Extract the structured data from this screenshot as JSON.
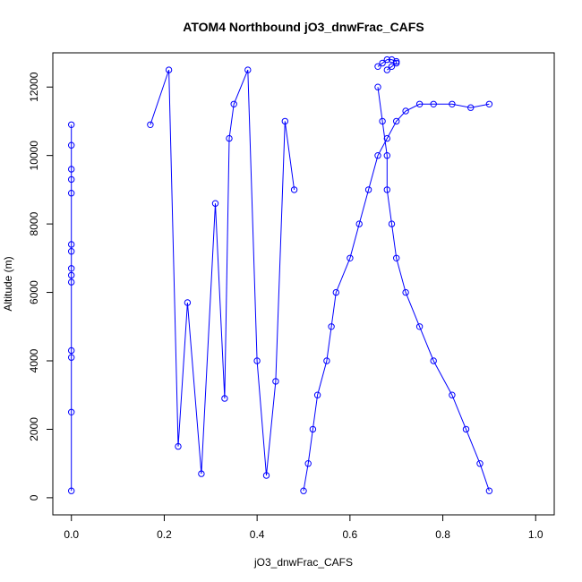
{
  "chart_data": {
    "type": "scatter",
    "title": "ATOM4 Northbound jO3_dnwFrac_CAFS",
    "xlabel": "jO3_dnwFrac_CAFS",
    "ylabel": "Altitude (m)",
    "xlim": [
      -0.04,
      1.04
    ],
    "ylim": [
      -500,
      13000
    ],
    "xticks": [
      0.0,
      0.2,
      0.4,
      0.6,
      0.8,
      1.0
    ],
    "xtick_labels": [
      "0.0",
      "0.2",
      "0.4",
      "0.6",
      "0.8",
      "1.0"
    ],
    "yticks": [
      0,
      2000,
      4000,
      6000,
      8000,
      10000,
      12000
    ],
    "ytick_labels": [
      "0",
      "2000",
      "4000",
      "6000",
      "8000",
      "10000",
      "12000"
    ],
    "grid": false,
    "legend": "none",
    "marker": "open-circle",
    "line": true,
    "series_color": "#0000ff",
    "series": [
      {
        "x": [
          0.5,
          0.51,
          0.52,
          0.53,
          0.55,
          0.56,
          0.57,
          0.6,
          0.62,
          0.64,
          0.66,
          0.68,
          0.7,
          0.72,
          0.75,
          0.78,
          0.82,
          0.86,
          0.9
        ],
        "y": [
          200,
          1000,
          2000,
          3000,
          4000,
          5000,
          6000,
          7000,
          8000,
          9000,
          10000,
          10500,
          11000,
          11300,
          11500,
          11500,
          11500,
          11400,
          11500
        ]
      },
      {
        "x": [
          0.9,
          0.88,
          0.85,
          0.82,
          0.78,
          0.75,
          0.72,
          0.7,
          0.69,
          0.68,
          0.68,
          0.67,
          0.66
        ],
        "y": [
          200,
          1000,
          2000,
          3000,
          4000,
          5000,
          6000,
          7000,
          8000,
          9000,
          10000,
          11000,
          12000
        ]
      },
      {
        "x": [
          0.0,
          0.0,
          0.0,
          0.0,
          0.0,
          0.0,
          0.0,
          0.0,
          0.0,
          0.0,
          0.0,
          0.0,
          0.0,
          0.0
        ],
        "y": [
          200,
          2500,
          4100,
          4300,
          6300,
          6500,
          6700,
          7200,
          7400,
          8900,
          9300,
          9600,
          10300,
          10900
        ]
      },
      {
        "x": [
          0.17,
          0.21,
          0.23,
          0.25,
          0.28,
          0.31,
          0.33,
          0.34,
          0.35,
          0.38,
          0.4,
          0.42,
          0.44,
          0.46,
          0.48
        ],
        "y": [
          10900,
          12500,
          1500,
          5700,
          700,
          8600,
          2900,
          10500,
          11500,
          12500,
          4000,
          650,
          3400,
          11000,
          9000
        ]
      },
      {
        "x": [
          0.66,
          0.67,
          0.68,
          0.69,
          0.7,
          0.7,
          0.69,
          0.68
        ],
        "y": [
          12600,
          12700,
          12800,
          12800,
          12750,
          12700,
          12600,
          12500
        ]
      }
    ]
  }
}
